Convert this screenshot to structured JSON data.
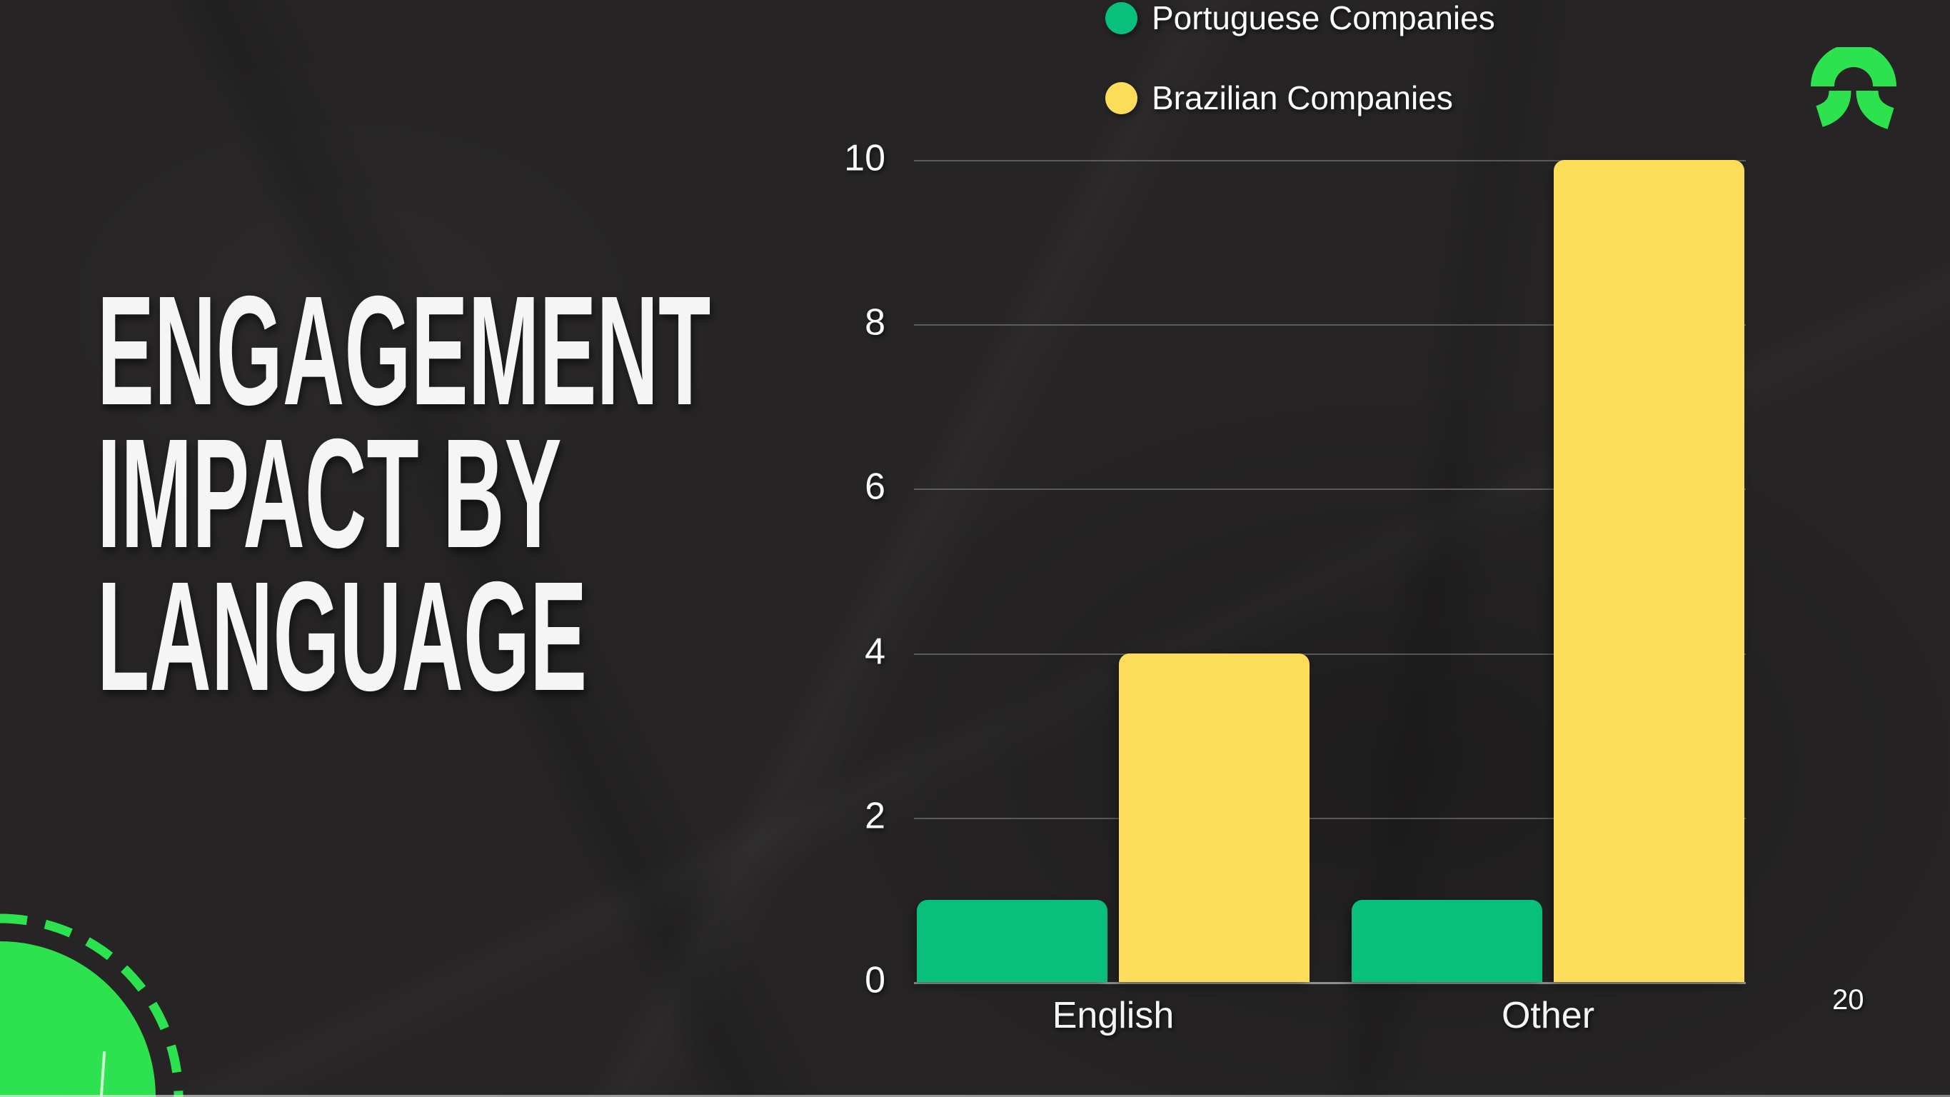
{
  "slide": {
    "title_lines": [
      "ENGAGEMENT",
      "IMPACT BY",
      "LANGUAGE"
    ],
    "page_number": "20",
    "colors": {
      "background": "#262424",
      "green": "#08bf7b",
      "yellow": "#fcdd5a",
      "accent_green": "#2ce24e",
      "text": "#f5f5f5",
      "gridline": "rgba(255,255,255,0.25)"
    },
    "icons": {
      "logo": "arch-figure-logo",
      "corner": "quarter-circle-with-dashed-ring"
    }
  },
  "legend": {
    "items": [
      {
        "label": "Portuguese Companies",
        "color": "#08bf7b"
      },
      {
        "label": "Brazilian Companies",
        "color": "#fcdd5a"
      }
    ]
  },
  "chart_data": {
    "type": "bar",
    "categories": [
      "English",
      "Other"
    ],
    "series": [
      {
        "name": "Portuguese Companies",
        "color": "#08bf7b",
        "values": [
          1,
          1
        ]
      },
      {
        "name": "Brazilian Companies",
        "color": "#fcdd5a",
        "values": [
          4,
          10
        ]
      }
    ],
    "title": "",
    "xlabel": "",
    "ylabel": "",
    "ylim": [
      0,
      10
    ],
    "yticks": [
      0,
      2,
      4,
      6,
      8,
      10
    ],
    "grid": true,
    "legend_position": "top"
  }
}
